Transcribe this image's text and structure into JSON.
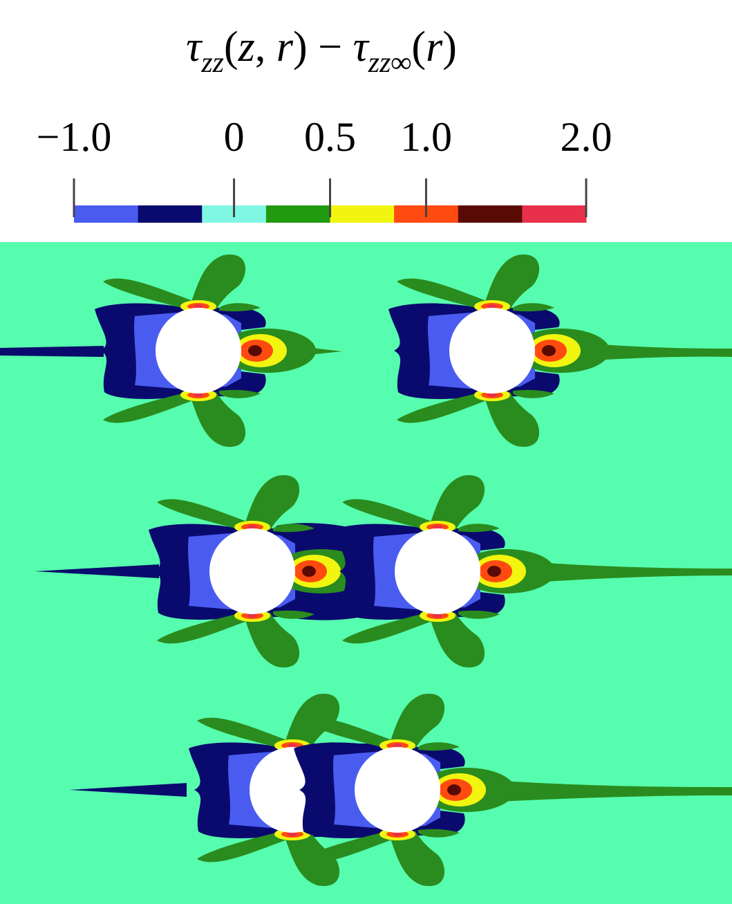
{
  "title": [
    {
      "text": "τ",
      "italic": true
    },
    {
      "text": "zz",
      "italic": true,
      "sub": true
    },
    {
      "text": "(",
      "italic": false
    },
    {
      "text": "z",
      "italic": true
    },
    {
      "text": ", ",
      "italic": false
    },
    {
      "text": "r",
      "italic": true
    },
    {
      "text": ") − ",
      "italic": false
    },
    {
      "text": "τ",
      "italic": true
    },
    {
      "text": "zz∞",
      "italic": true,
      "sub": true
    },
    {
      "text": "(",
      "italic": false
    },
    {
      "text": "r",
      "italic": true
    },
    {
      "text": ")",
      "italic": false
    }
  ],
  "colorbar": {
    "levels": [
      -1.0,
      -0.5,
      -0.2,
      0.2,
      0.5,
      0.8,
      1.2,
      1.6,
      2.0
    ],
    "colors": [
      "#4a5cf0",
      "#0a0a6e",
      "#80f7e2",
      "#229a10",
      "#f2f510",
      "#ff4a10",
      "#5a0a05",
      "#e8304a"
    ],
    "ticks": [
      {
        "value": -1,
        "label": "−1.0"
      },
      0,
      0.5,
      {
        "value": 1,
        "label": "1.0"
      },
      {
        "value": 2,
        "label": "2.0"
      }
    ]
  }
}
